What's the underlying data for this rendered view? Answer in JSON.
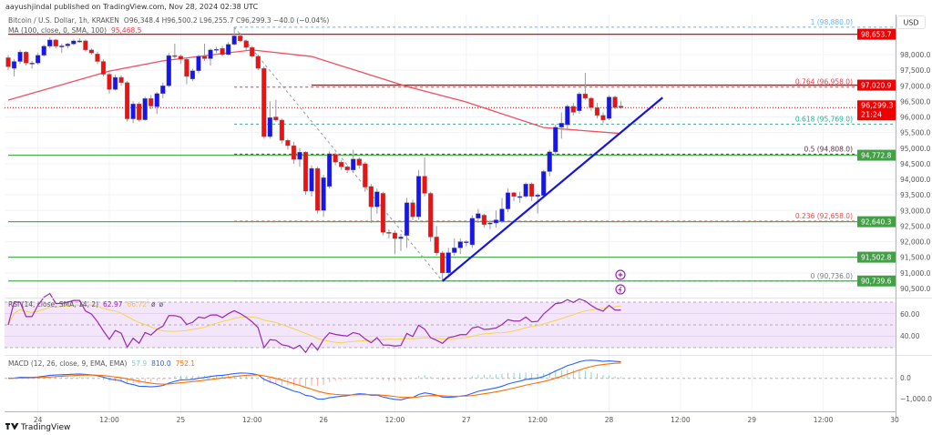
{
  "header": {
    "published": "aayushjindal published on TradingView.com, Nov 28, 2024 02:38 UTC",
    "symbol": "Bitcoin / U.S. Dollar, 1h, KRAKEN",
    "ohlc": "O96,348.4  H96,500.2  L96,255.7  C96,299.3  −40.0 (−0.04%)",
    "ma_label": "MA (100, close, 0, SMA, 100)",
    "ma_value": "95,468.5"
  },
  "currency": "USD",
  "rsi": {
    "label": "RSI (14, close, SMA, 14, 2)",
    "value": "62.97",
    "ma_value": "66.72",
    "axis": [
      "60.00",
      "40.00"
    ]
  },
  "macd": {
    "label": "MACD (12, 26, close, 9, EMA, EMA)",
    "hist": "57.9",
    "macd": "810.0",
    "signal": "752.1",
    "axis": [
      "0.0",
      "−1,000.0"
    ]
  },
  "price_axis": [
    "98,000.0",
    "97,500.0",
    "97,000.0",
    "96,500.0",
    "96,000.0",
    "95,500.0",
    "95,000.0",
    "94,500.0",
    "94,000.0",
    "93,500.0",
    "93,000.0",
    "92,500.0",
    "92,000.0",
    "91,500.0",
    "91,000.0",
    "90,500.0"
  ],
  "time_axis": [
    "24",
    "12:00",
    "25",
    "12:00",
    "26",
    "12:00",
    "27",
    "12:00",
    "28",
    "12:00",
    "29",
    "12:00",
    "30"
  ],
  "current_price": {
    "value": "96,299.3",
    "countdown": "21:24"
  },
  "levels": [
    {
      "price": 98653.7,
      "label": "98,653.7",
      "color": "#f00000",
      "from_bar": 1
    },
    {
      "price": 97020.9,
      "label": "97,020.9",
      "color": "#f00000",
      "from_bar": 52
    },
    {
      "price": 94772.8,
      "label": "94,772.8",
      "color": "#4caf50",
      "from_bar": 1
    },
    {
      "price": 92640.3,
      "label": "92,640.3",
      "color": "#4caf50",
      "from_bar": 1
    },
    {
      "price": 91502.8,
      "label": "91,502.8",
      "color": "#4caf50",
      "from_bar": 1
    },
    {
      "price": 90739.6,
      "label": "90,739.6",
      "color": "#4caf50",
      "from_bar": 1
    }
  ],
  "fib": [
    {
      "price": 98880.0,
      "label": "1 (98,880.0)",
      "color": "#64b5f6"
    },
    {
      "price": 96958.0,
      "label": "0.764 (96,958.0)",
      "color": "#f23645"
    },
    {
      "price": 95769.0,
      "label": "0.618 (95,769.0)",
      "color": "#22ab94"
    },
    {
      "price": 94808.0,
      "label": "0.5 (94,808.0)",
      "color": "#5d3344"
    },
    {
      "price": 92658.0,
      "label": "0.236 (92,658.0)",
      "color": "#e05050"
    },
    {
      "price": 90736.0,
      "label": "0 (90,736.0)",
      "color": "#787b86"
    }
  ],
  "colors": {
    "bull": "#1414f5",
    "bear": "#f01010",
    "ma": "#f05060",
    "rsi": "#9c27b0",
    "rsi_ma": "#f5d547",
    "macd": "#2962ff",
    "signal": "#ff6d00",
    "trendline": "#1515e0"
  },
  "footer": {
    "brand": "TradingView"
  },
  "chart_data": {
    "type": "candlestick",
    "interval": "1h",
    "first_bar": "Nov 23 19:00",
    "ohlc": [
      [
        97900,
        97980,
        97500,
        97610
      ],
      [
        97560,
        97850,
        97300,
        97780
      ],
      [
        97780,
        98150,
        97700,
        98080
      ],
      [
        98080,
        98120,
        97650,
        97730
      ],
      [
        97730,
        97800,
        97550,
        97730
      ],
      [
        97730,
        98050,
        97680,
        97980
      ],
      [
        97980,
        98320,
        97940,
        98270
      ],
      [
        98270,
        98550,
        98200,
        98470
      ],
      [
        98470,
        98500,
        98200,
        98270
      ],
      [
        98270,
        98350,
        98050,
        98280
      ],
      [
        98280,
        98380,
        98200,
        98340
      ],
      [
        98340,
        98480,
        98300,
        98440
      ],
      [
        98440,
        98520,
        98380,
        98440
      ],
      [
        98440,
        98480,
        98100,
        98150
      ],
      [
        98150,
        98200,
        98000,
        98050
      ],
      [
        98020,
        98100,
        97700,
        97780
      ],
      [
        97780,
        97850,
        97300,
        97370
      ],
      [
        97370,
        97420,
        96750,
        96880
      ],
      [
        96880,
        97350,
        96850,
        97270
      ],
      [
        97270,
        97330,
        97000,
        97100
      ],
      [
        97100,
        97150,
        95850,
        95940
      ],
      [
        95940,
        96500,
        95800,
        96420
      ],
      [
        96420,
        96480,
        95850,
        95910
      ],
      [
        95910,
        96650,
        95880,
        96590
      ],
      [
        96590,
        96700,
        96250,
        96350
      ],
      [
        96330,
        96800,
        96100,
        96750
      ],
      [
        96750,
        97100,
        96600,
        97000
      ],
      [
        97000,
        98050,
        96950,
        97970
      ],
      [
        97970,
        98350,
        97880,
        97960
      ],
      [
        97950,
        98000,
        97700,
        97850
      ],
      [
        97850,
        97900,
        97050,
        97300
      ],
      [
        97220,
        97550,
        97150,
        97480
      ],
      [
        97480,
        98000,
        97400,
        97950
      ],
      [
        97950,
        98350,
        97800,
        97870
      ],
      [
        97870,
        98200,
        97650,
        98150
      ],
      [
        98150,
        98250,
        98050,
        98170
      ],
      [
        98200,
        98280,
        97950,
        98000
      ],
      [
        98000,
        98400,
        97980,
        98330
      ],
      [
        98330,
        98880,
        98300,
        98600
      ],
      [
        98600,
        98700,
        98400,
        98440
      ],
      [
        98440,
        98480,
        98150,
        98230
      ],
      [
        98230,
        98280,
        97900,
        97950
      ],
      [
        97950,
        98000,
        97500,
        97560
      ],
      [
        97560,
        97620,
        95300,
        95370
      ],
      [
        95370,
        96500,
        95300,
        95980
      ],
      [
        96000,
        96550,
        95850,
        95900
      ],
      [
        95900,
        95950,
        95150,
        95250
      ],
      [
        95250,
        95300,
        94950,
        95080
      ],
      [
        95080,
        95200,
        94500,
        94640
      ],
      [
        94640,
        95000,
        94400,
        94870
      ],
      [
        94870,
        94900,
        93500,
        93620
      ],
      [
        93620,
        94450,
        93450,
        94350
      ],
      [
        94350,
        94400,
        92900,
        93000
      ],
      [
        93000,
        94150,
        92800,
        94050
      ],
      [
        93770,
        94900,
        93700,
        94820
      ],
      [
        94800,
        94860,
        94450,
        94550
      ],
      [
        94550,
        94620,
        94300,
        94400
      ],
      [
        94400,
        94450,
        94200,
        94300
      ],
      [
        94300,
        94950,
        94200,
        94650
      ],
      [
        94650,
        94700,
        94350,
        94450
      ],
      [
        94500,
        94560,
        93600,
        93750
      ],
      [
        93770,
        93850,
        92600,
        93120
      ],
      [
        93120,
        93700,
        92900,
        93600
      ],
      [
        93550,
        93600,
        92200,
        92300
      ],
      [
        92300,
        92400,
        92100,
        92280
      ],
      [
        92280,
        92350,
        91600,
        92100
      ],
      [
        92100,
        92250,
        91700,
        92150
      ],
      [
        92200,
        93400,
        91800,
        93250
      ],
      [
        93250,
        93350,
        92700,
        92800
      ],
      [
        92800,
        94300,
        92700,
        94100
      ],
      [
        94100,
        94700,
        93450,
        93550
      ],
      [
        93550,
        93600,
        92000,
        92150
      ],
      [
        92150,
        92500,
        91550,
        91640
      ],
      [
        91640,
        91700,
        90736,
        91000
      ],
      [
        91000,
        91800,
        90900,
        91650
      ],
      [
        91650,
        92100,
        91550,
        91800
      ],
      [
        91800,
        92100,
        91600,
        92000
      ],
      [
        92000,
        92050,
        91850,
        92000
      ],
      [
        91900,
        92850,
        91800,
        92750
      ],
      [
        92750,
        93050,
        92600,
        92900
      ],
      [
        92850,
        92900,
        92450,
        92550
      ],
      [
        92580,
        92700,
        92400,
        92600
      ],
      [
        92600,
        93000,
        92450,
        92700
      ],
      [
        92650,
        93400,
        92600,
        93050
      ],
      [
        93050,
        93700,
        92950,
        93570
      ],
      [
        93570,
        93600,
        93300,
        93450
      ],
      [
        93450,
        93600,
        93250,
        93450
      ],
      [
        93450,
        93900,
        93400,
        93850
      ],
      [
        93850,
        93900,
        93300,
        93450
      ],
      [
        93450,
        93550,
        92900,
        93500
      ],
      [
        93480,
        94300,
        93400,
        94250
      ],
      [
        94250,
        94950,
        94100,
        94880
      ],
      [
        94880,
        95750,
        94750,
        95670
      ],
      [
        95670,
        96150,
        95300,
        95800
      ],
      [
        95750,
        96400,
        95600,
        96340
      ],
      [
        96340,
        96450,
        96050,
        96150
      ],
      [
        96200,
        96800,
        96100,
        96740
      ],
      [
        96740,
        97420,
        96550,
        96600
      ],
      [
        96600,
        96650,
        96200,
        96300
      ],
      [
        96300,
        96450,
        95950,
        96050
      ],
      [
        96050,
        96150,
        95800,
        95900
      ],
      [
        95950,
        96700,
        95900,
        96640
      ],
      [
        96640,
        96680,
        96250,
        96300
      ],
      [
        96348.4,
        96500.2,
        96255.7,
        96299.3
      ]
    ],
    "ma100": [
      [
        1,
        96540
      ],
      [
        18,
        97470
      ],
      [
        27,
        97800
      ],
      [
        42,
        98150
      ],
      [
        52,
        97940
      ],
      [
        68,
        96980
      ],
      [
        78,
        96480
      ],
      [
        91,
        95660
      ],
      [
        104,
        95470
      ]
    ],
    "trendline": [
      [
        74,
        90736
      ],
      [
        111,
        96620
      ]
    ],
    "fib_anchor": [
      [
        39,
        98880
      ],
      [
        74,
        90736
      ]
    ],
    "price_range": [
      90400,
      99200
    ]
  }
}
